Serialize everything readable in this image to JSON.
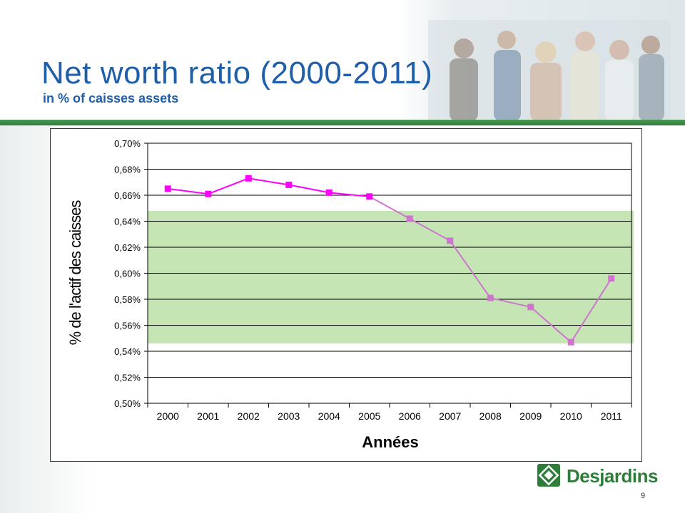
{
  "slide": {
    "title": "Net worth ratio (2000-2011)",
    "subtitle": "in % of caisses assets",
    "page_number": "9",
    "logo_text": "Desjardins"
  },
  "colors": {
    "title": "#1f5ea8",
    "accent_green": "#2e7d3a",
    "band_fill": "#c6e5b5",
    "series_early": "#ff00ff",
    "series_late": "#cc77cc"
  },
  "chart_data": {
    "type": "line",
    "title": "",
    "xlabel": "Années",
    "ylabel": "% de l'actif des caisses",
    "categories": [
      "2000",
      "2001",
      "2002",
      "2003",
      "2004",
      "2005",
      "2006",
      "2007",
      "2008",
      "2009",
      "2010",
      "2011"
    ],
    "series": [
      {
        "values": [
          0.665,
          0.661,
          0.673,
          0.668,
          0.662,
          0.659,
          0.642,
          0.625,
          0.581,
          0.574,
          0.547,
          0.596
        ]
      }
    ],
    "ylim": [
      0.5,
      0.7
    ],
    "yticks": [
      "0,70%",
      "0,68%",
      "0,66%",
      "0,64%",
      "0,62%",
      "0,60%",
      "0,58%",
      "0,56%",
      "0,54%",
      "0,52%",
      "0,50%"
    ],
    "highlight_band": {
      "from": 0.546,
      "to": 0.648
    },
    "grid": true
  }
}
